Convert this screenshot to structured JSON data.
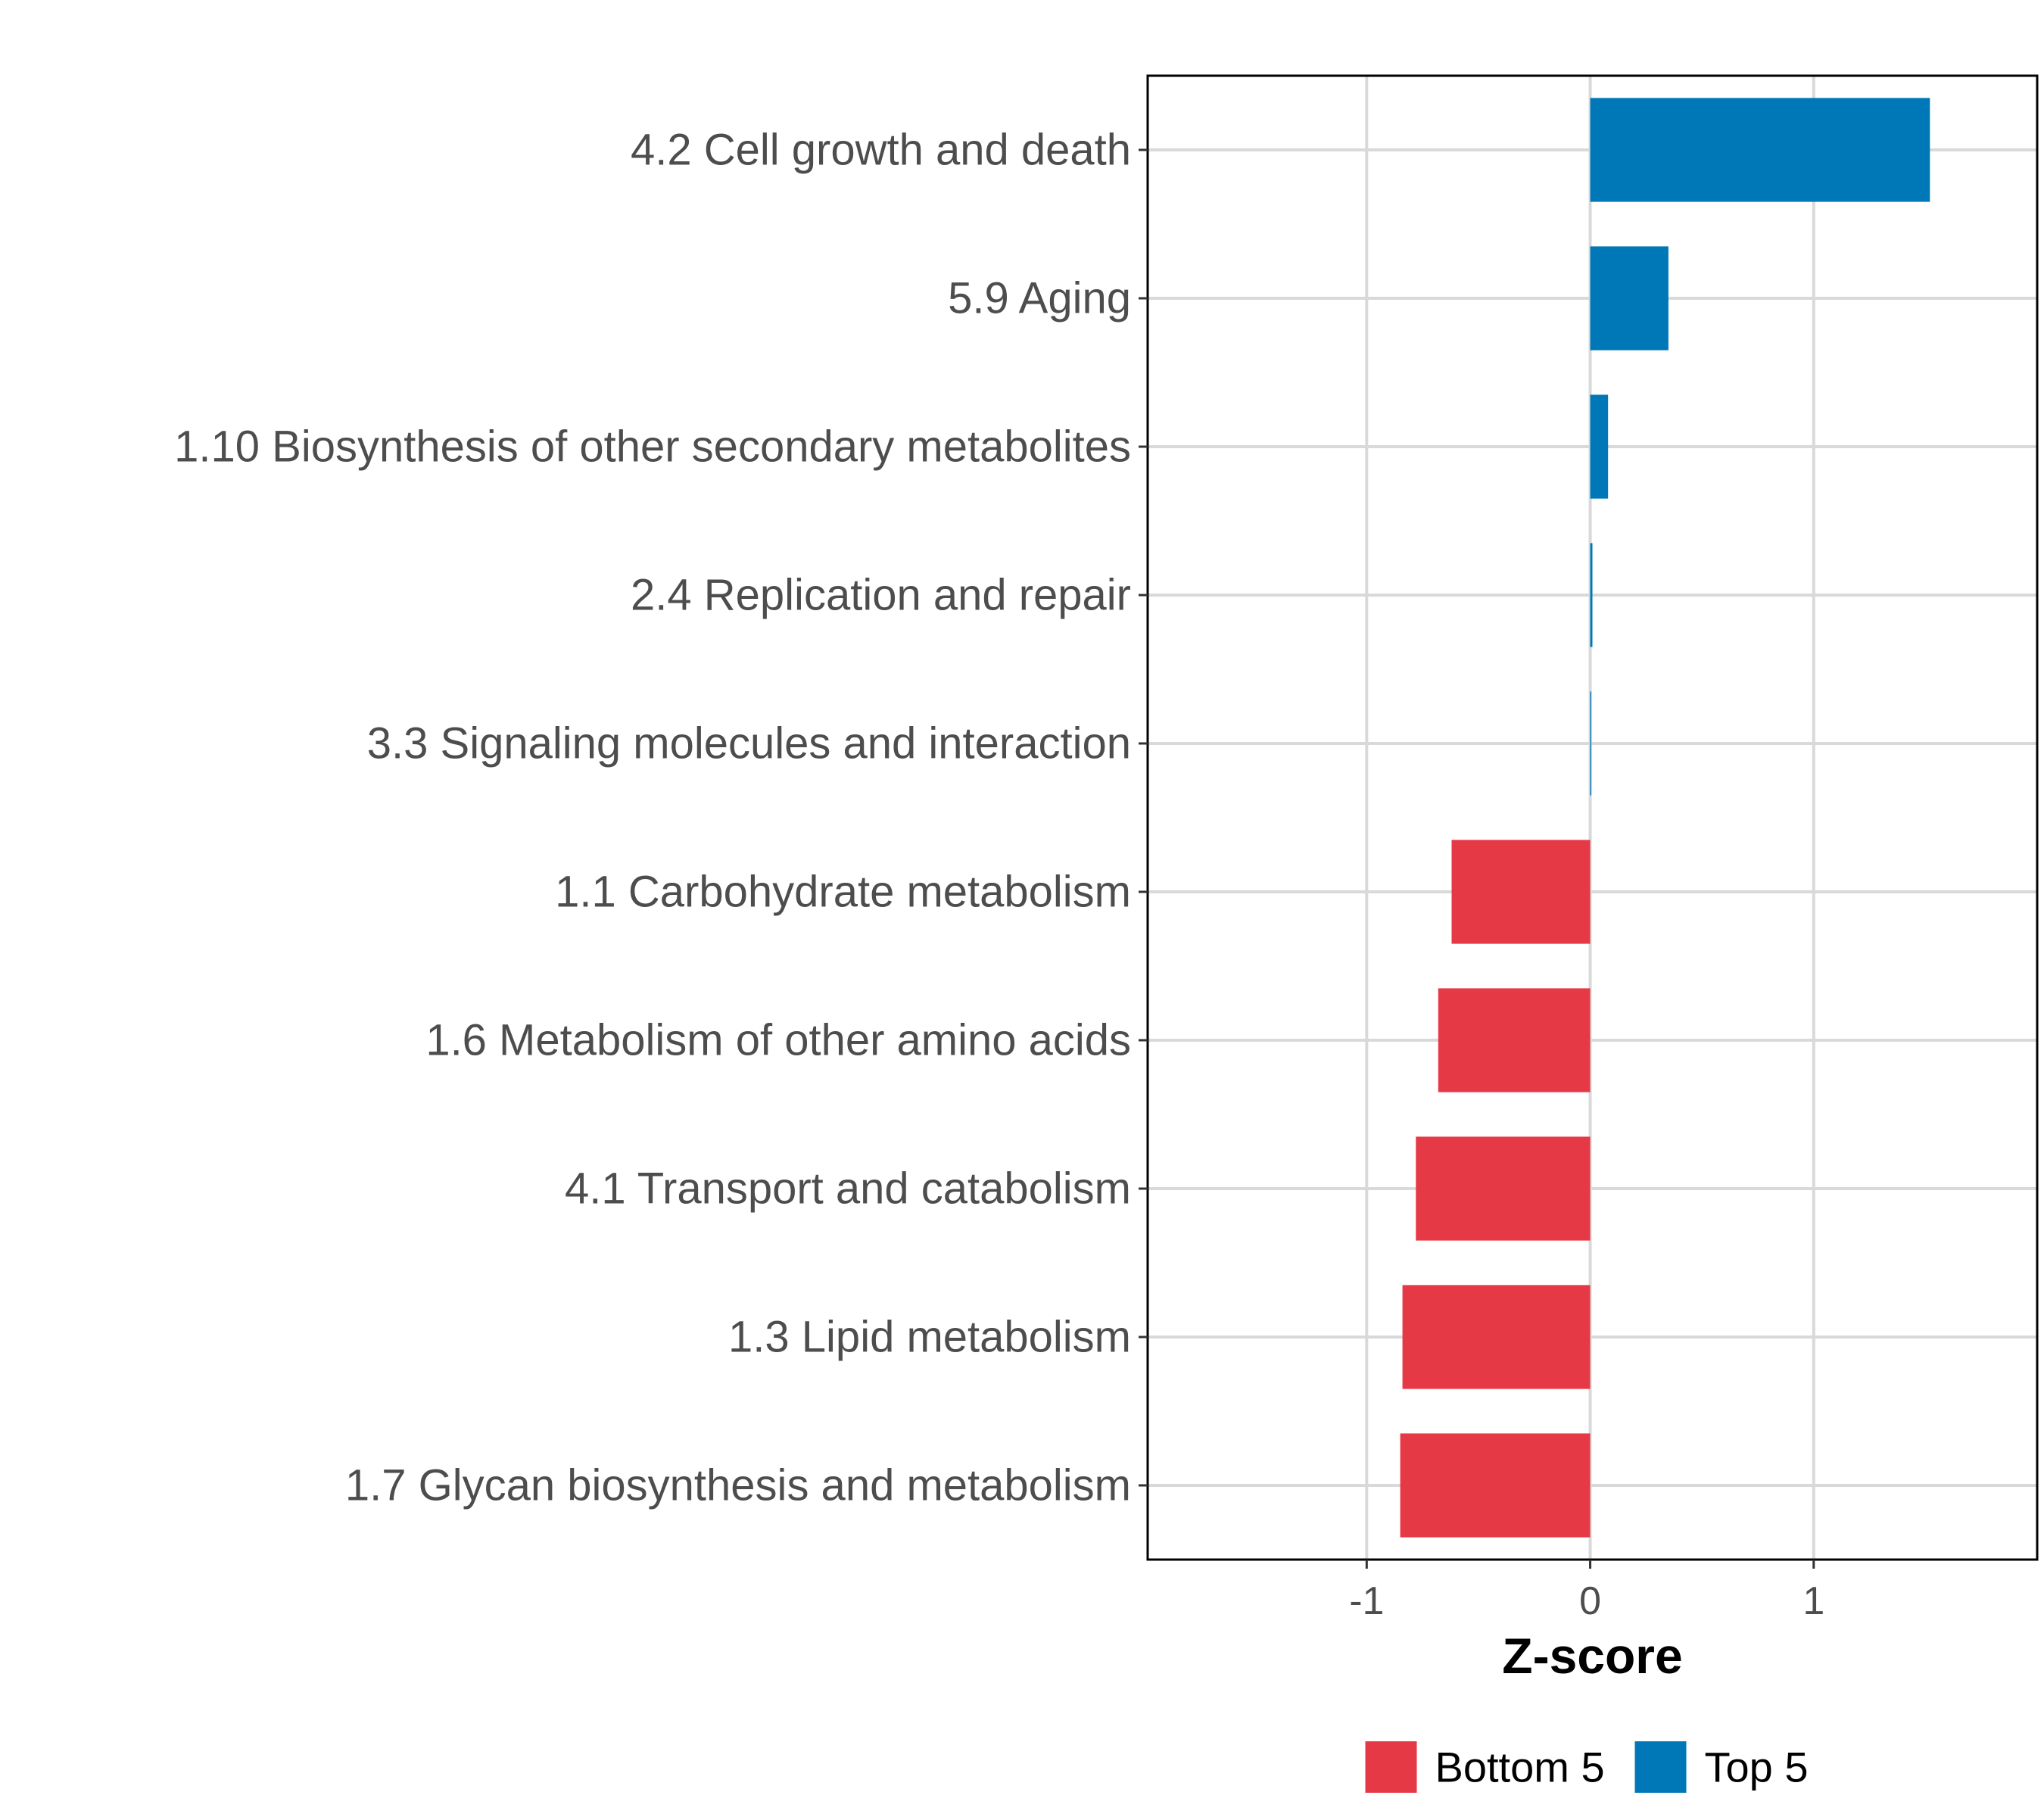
{
  "chart_data": {
    "type": "bar",
    "orientation": "horizontal",
    "categories": [
      "4.2 Cell growth and death",
      "5.9 Aging",
      "1.10 Biosynthesis of other secondary metabolites",
      "2.4 Replication and repair",
      "3.3 Signaling molecules and interaction",
      "1.1 Carbohydrate metabolism",
      "1.6 Metabolism of other amino acids",
      "4.1 Transport and catabolism",
      "1.3 Lipid metabolism",
      "1.7 Glycan biosynthesis and metabolism"
    ],
    "values": [
      1.52,
      0.35,
      0.08,
      0.01,
      0.005,
      -0.62,
      -0.68,
      -0.78,
      -0.84,
      -0.85
    ],
    "groups": [
      "Top 5",
      "Top 5",
      "Top 5",
      "Top 5",
      "Top 5",
      "Bottom 5",
      "Bottom 5",
      "Bottom 5",
      "Bottom 5",
      "Bottom 5"
    ],
    "xlabel": "Z-score",
    "ylabel": "",
    "xlim": [
      -1.98,
      2.0
    ],
    "xticks": [
      -1,
      0,
      1
    ],
    "xtick_labels": [
      "-1",
      "0",
      "1"
    ],
    "grid": true,
    "legend": {
      "position": "bottom",
      "entries": [
        {
          "label": "Bottom 5",
          "color": "#e63946"
        },
        {
          "label": "Top 5",
          "color": "#0077b6"
        }
      ]
    }
  }
}
